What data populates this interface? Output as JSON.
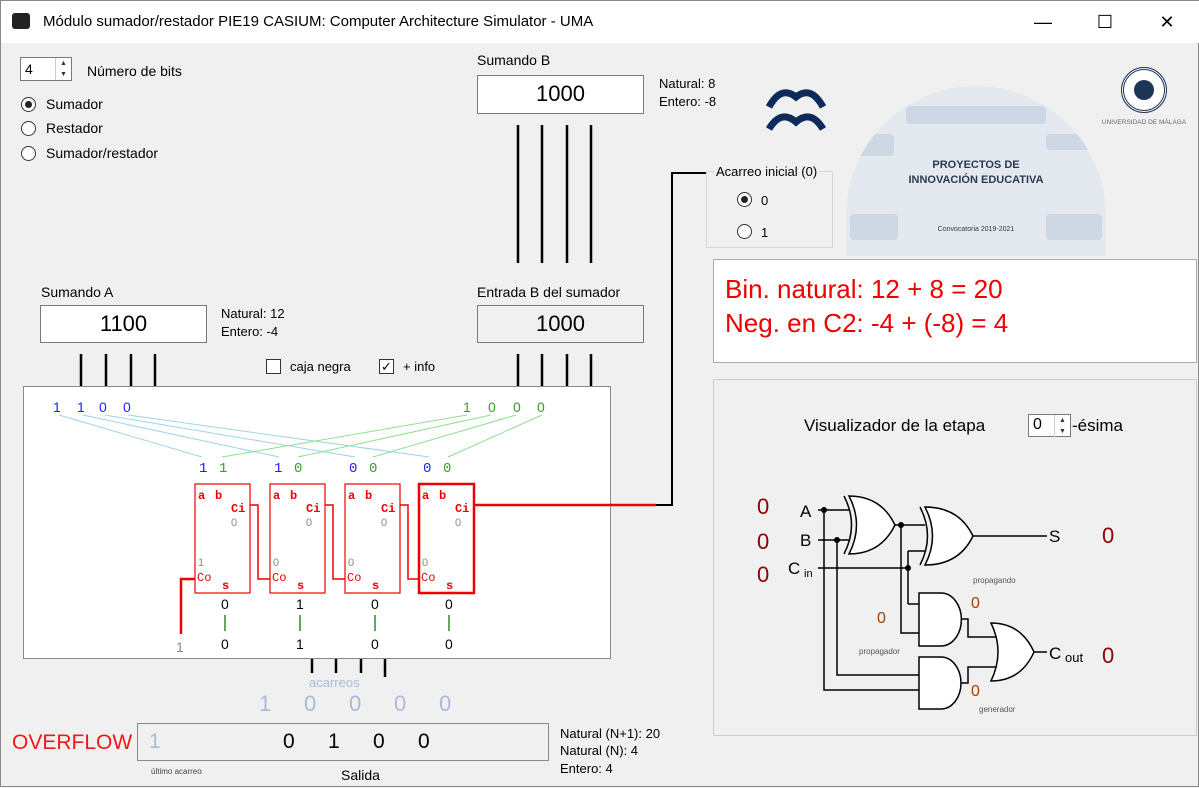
{
  "window": {
    "title": "Módulo sumador/restador PIE19 CASIUM: Computer Architecture Simulator - UMA",
    "minimize": "—",
    "maximize": "☐",
    "close": "✕"
  },
  "bits": {
    "value": "4",
    "label": "Número de bits"
  },
  "mode": {
    "options": [
      "Sumador",
      "Restador",
      "Sumador/restador"
    ],
    "selected": "Sumador"
  },
  "sumando_b": {
    "label": "Sumando B",
    "value": "1000",
    "natural": "Natural: 8",
    "entero": "Entero: -8"
  },
  "acarreo_inicial": {
    "label": "Acarreo inicial (0)",
    "options": [
      "0",
      "1"
    ],
    "selected": "0"
  },
  "sumando_a": {
    "label": "Sumando A",
    "value": "1100",
    "natural": "Natural: 12",
    "entero": "Entero: -4"
  },
  "entrada_b": {
    "label": "Entrada B del sumador",
    "value": "1000"
  },
  "checks": {
    "caja_negra": {
      "label": "caja negra",
      "checked": false
    },
    "info": {
      "label": "+ info",
      "checked": true
    }
  },
  "result": {
    "line1": "Bin. natural: 12 + 8 = 20",
    "line2": "Neg. en C2: -4 + (-8) = 4",
    "color": "#e00000"
  },
  "logos": {
    "arq": "Arquitectura de Computadores",
    "pie": "PROYECTOS DE INNOVACIÓN EDUCATIVA",
    "convocatoria": "Convocatoria 2019-2021",
    "uma": "UNIVERSIDAD DE MÁLAGA"
  },
  "circuit": {
    "a_bits": [
      "1",
      "1",
      "0",
      "0"
    ],
    "b_bits": [
      "1",
      "0",
      "0",
      "0"
    ],
    "stages": [
      {
        "a": "1",
        "b": "1",
        "ci": "0",
        "co": "1",
        "s": "0",
        "out": "0"
      },
      {
        "a": "1",
        "b": "0",
        "ci": "0",
        "co": "0",
        "s": "1",
        "out": "1"
      },
      {
        "a": "0",
        "b": "0",
        "ci": "0",
        "co": "0",
        "s": "0",
        "out": "0"
      },
      {
        "a": "0",
        "b": "0",
        "ci": "0",
        "co": "0",
        "s": "0",
        "out": "0"
      }
    ],
    "pin_a": "a",
    "pin_b": "b",
    "pin_ci": "Ci",
    "pin_co": "Co",
    "pin_s": "s",
    "final_carry": "1"
  },
  "acarreos": {
    "label": "acarreos",
    "bits": [
      "1",
      "0",
      "0",
      "0",
      "0"
    ]
  },
  "output": {
    "overflow": "OVERFLOW",
    "last_carry": "1",
    "bits": [
      "0",
      "1",
      "0",
      "0"
    ],
    "last_carry_label": "último acarreo",
    "label": "Salida",
    "natural_n1": "Natural (N+1): 20",
    "natural_n": "Natural (N): 4",
    "entero": "Entero: 4"
  },
  "visualizer": {
    "label": "Visualizador de la etapa",
    "stage": "0",
    "suffix": "-ésima",
    "in_a": "0",
    "in_b": "0",
    "in_cin": "0",
    "lbl_a": "A",
    "lbl_b": "B",
    "lbl_c": "C",
    "lbl_in": "in",
    "lbl_s": "S",
    "lbl_out": "out",
    "s": "0",
    "cout": "0",
    "propagando": "propagando",
    "propagador": "propagador",
    "generador": "generador",
    "and1_out": "0",
    "prop_val": "0",
    "gen_val": "0"
  }
}
